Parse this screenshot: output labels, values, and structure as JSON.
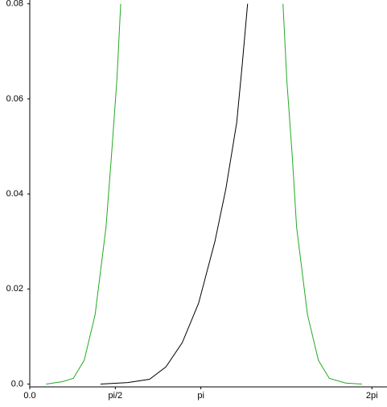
{
  "chart_data": {
    "type": "line",
    "xlim": [
      0,
      6.56
    ],
    "ylim": [
      -0.0006,
      0.0808
    ],
    "xticks": [
      {
        "value": 0,
        "label": "0.0"
      },
      {
        "value": 1.5708,
        "label": "pi/2"
      },
      {
        "value": 3.1416,
        "label": "pi"
      },
      {
        "value": 6.2832,
        "label": "2pi"
      }
    ],
    "yticks": [
      {
        "value": 0,
        "label": "0.0"
      },
      0.02,
      0.04,
      0.06,
      0.08
    ],
    "series": [
      {
        "color": "#22aa22",
        "x": [
          0.3,
          0.6,
          0.8,
          1.0,
          1.2,
          1.4,
          1.5,
          1.6,
          1.67,
          null,
          4.65,
          4.72,
          4.82,
          4.9,
          5.1,
          5.3,
          5.5,
          5.8,
          6.1
        ],
        "values": [
          0,
          0.0005,
          0.0012,
          0.005,
          0.0146,
          0.033,
          0.048,
          0.064,
          0.08,
          null,
          0.08,
          0.064,
          0.048,
          0.033,
          0.0146,
          0.005,
          0.0012,
          0.0002,
          0
        ]
      },
      {
        "color": "#000000",
        "x": [
          1.3,
          1.8,
          2.2,
          2.5,
          2.8,
          3.1,
          3.4,
          3.6,
          3.8,
          3.9,
          4.0
        ],
        "values": [
          0,
          0.0003,
          0.001,
          0.0036,
          0.0087,
          0.017,
          0.03,
          0.041,
          0.055,
          0.067,
          0.08
        ]
      }
    ]
  }
}
